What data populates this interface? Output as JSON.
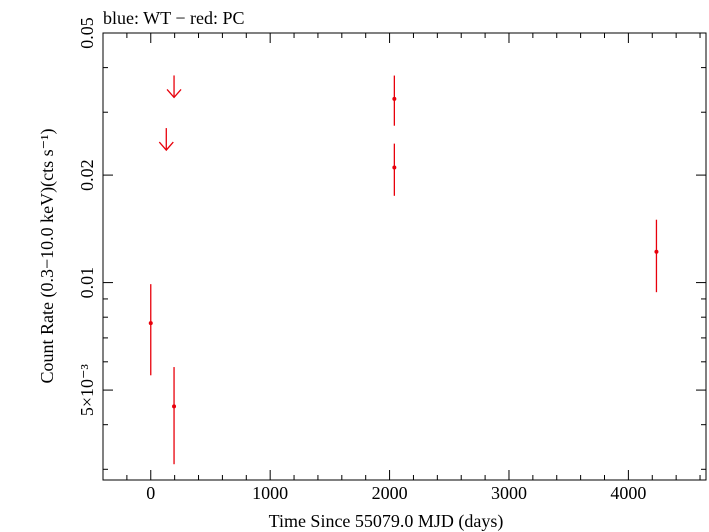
{
  "chart_data": {
    "type": "scatter",
    "title": "blue: WT − red: PC",
    "xlabel": "Time Since 55079.0 MJD (days)",
    "ylabel": "Count Rate (0.3−10.0 keV)(cts s⁻¹)",
    "x_scale": "linear",
    "y_scale": "log",
    "xlim": [
      -400,
      4650
    ],
    "ylim": [
      0.0028,
      0.05
    ],
    "x_ticks": [
      {
        "value": 0,
        "label": "0"
      },
      {
        "value": 1000,
        "label": "1000"
      },
      {
        "value": 2000,
        "label": "2000"
      },
      {
        "value": 3000,
        "label": "3000"
      },
      {
        "value": 4000,
        "label": "4000"
      }
    ],
    "y_ticks": [
      {
        "value": 0.005,
        "label": "5×10⁻³"
      },
      {
        "value": 0.01,
        "label": "0.01"
      },
      {
        "value": 0.02,
        "label": "0.02"
      },
      {
        "value": 0.05,
        "label": "0.05"
      }
    ],
    "grid": false,
    "series": [
      {
        "color": "#e8000b",
        "points": [
          {
            "x": 0,
            "y": 0.0077,
            "y_low": 0.0055,
            "y_high": 0.0099
          },
          {
            "x": 195,
            "y": 0.0045,
            "y_low": 0.0031,
            "y_high": 0.0058
          },
          {
            "x": 2040,
            "y": 0.0327,
            "y_low": 0.0275,
            "y_high": 0.038
          },
          {
            "x": 2040,
            "y": 0.021,
            "y_low": 0.0175,
            "y_high": 0.0245
          },
          {
            "x": 4235,
            "y": 0.0122,
            "y_low": 0.0094,
            "y_high": 0.015
          }
        ]
      }
    ],
    "upper_limits": [
      {
        "x": 195,
        "y": 0.033,
        "color": "#e8000b"
      },
      {
        "x": 130,
        "y": 0.0235,
        "color": "#e8000b"
      }
    ]
  }
}
